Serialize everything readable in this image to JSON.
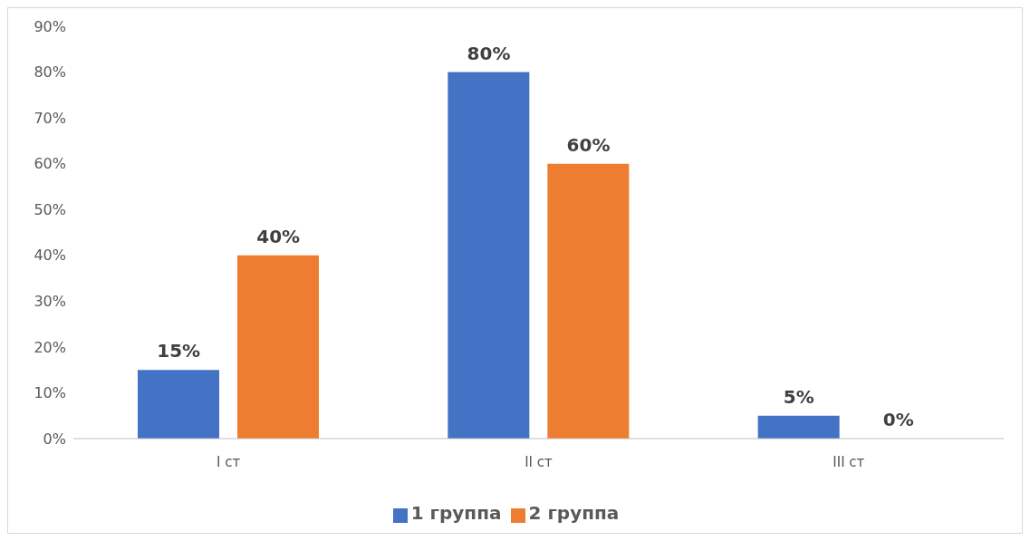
{
  "chart_data": {
    "type": "bar",
    "categories": [
      "I ст",
      "II ст",
      "III ст"
    ],
    "series": [
      {
        "name": "1 группа",
        "color": "#4472c4",
        "values": [
          15,
          80,
          5
        ]
      },
      {
        "name": "2 группа",
        "color": "#ed7d31",
        "values": [
          40,
          60,
          0
        ]
      }
    ],
    "ylim": [
      0,
      90
    ],
    "yticks": [
      {
        "value": 0,
        "label": "0%"
      },
      {
        "value": 10,
        "label": "10%"
      },
      {
        "value": 20,
        "label": "20%"
      },
      {
        "value": 30,
        "label": "30%"
      },
      {
        "value": 40,
        "label": "40%"
      },
      {
        "value": 50,
        "label": "50%"
      },
      {
        "value": 60,
        "label": "60%"
      },
      {
        "value": 70,
        "label": "70%"
      },
      {
        "value": 80,
        "label": "80%"
      },
      {
        "value": 90,
        "label": "90%"
      }
    ],
    "value_labels": [
      [
        "15%",
        "80%",
        "5%"
      ],
      [
        "40%",
        "60%",
        "0%"
      ]
    ],
    "grid": false,
    "legend": "bottom"
  }
}
